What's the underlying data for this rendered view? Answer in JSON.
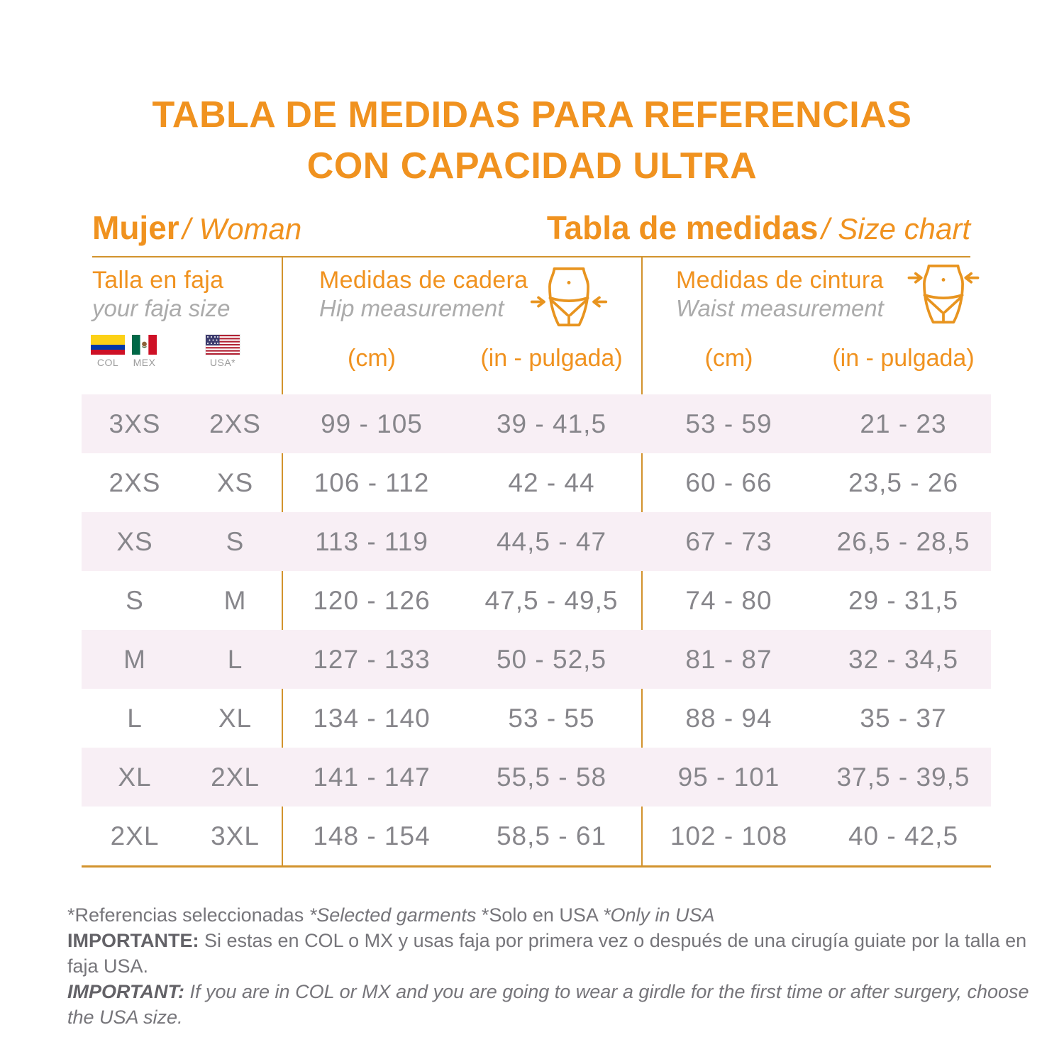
{
  "title": {
    "line1": "TABLA DE MEDIDAS PARA REFERENCIAS",
    "line2": "CON CAPACIDAD ULTRA"
  },
  "subheader": {
    "left_bold": "Mujer",
    "left_italic": "/ Woman",
    "right_bold": "Tabla de medidas",
    "right_italic": "/ Size chart"
  },
  "sections": {
    "faja": {
      "title": "Talla en faja",
      "subtitle": "your faja size",
      "flags": [
        {
          "label": "COL"
        },
        {
          "label": "MEX"
        },
        {
          "label": "USA*"
        }
      ]
    },
    "hip": {
      "title": "Medidas de cadera",
      "subtitle": "Hip measurement",
      "cm_label": "(cm)",
      "in_label": "(in - pulgada)"
    },
    "waist": {
      "title": "Medidas de cintura",
      "subtitle": "Waist measurement",
      "cm_label": "(cm)",
      "in_label": "(in - pulgada)"
    }
  },
  "chart_data": {
    "type": "table",
    "title": "TABLA DE MEDIDAS PARA REFERENCIAS CON CAPACIDAD ULTRA",
    "columns": [
      "Talla en faja COL/MEX",
      "Talla en faja USA",
      "Cadera / Hip (cm)",
      "Cadera / Hip (in - pulgada)",
      "Cintura / Waist (cm)",
      "Cintura / Waist (in - pulgada)"
    ],
    "rows": [
      [
        "3XS",
        "2XS",
        "99 - 105",
        "39 - 41,5",
        "53 - 59",
        "21 - 23"
      ],
      [
        "2XS",
        "XS",
        "106 - 112",
        "42 - 44",
        "60 - 66",
        "23,5 - 26"
      ],
      [
        "XS",
        "S",
        "113 - 119",
        "44,5 - 47",
        "67 - 73",
        "26,5 - 28,5"
      ],
      [
        "S",
        "M",
        "120 - 126",
        "47,5 - 49,5",
        "74 - 80",
        "29 - 31,5"
      ],
      [
        "M",
        "L",
        "127 - 133",
        "50 - 52,5",
        "81 - 87",
        "32 - 34,5"
      ],
      [
        "L",
        "XL",
        "134 - 140",
        "53 - 55",
        "88 - 94",
        "35 - 37"
      ],
      [
        "XL",
        "2XL",
        "141 - 147",
        "55,5 - 58",
        "95 - 101",
        "37,5 - 39,5"
      ],
      [
        "2XL",
        "3XL",
        "148 - 154",
        "58,5 - 61",
        "102 - 108",
        "40 - 42,5"
      ]
    ]
  },
  "footer": {
    "ref_normal1": "*Referencias seleccionadas ",
    "ref_italic1": "*Selected garments ",
    "ref_normal2": "*Solo en USA ",
    "ref_italic2": "*Only in USA",
    "importante_label": "IMPORTANTE:",
    "importante_text": " Si estas en COL o MX y usas faja por primera vez o después de una cirugía guiate por la talla en faja USA.",
    "important_label": "IMPORTANT:",
    "important_text": " If you are in COL or MX and you are going to wear a girdle for the first time or after surgery, choose the USA size."
  },
  "colors": {
    "accent_orange": "#F0921F",
    "line_gold": "#D2932D",
    "row_pink": "#F8EFF5",
    "value_gray": "#87868B",
    "subtitle_gray": "#ABABAB",
    "footer_gray": "#76757A",
    "icon_orange": "#E8941F"
  }
}
